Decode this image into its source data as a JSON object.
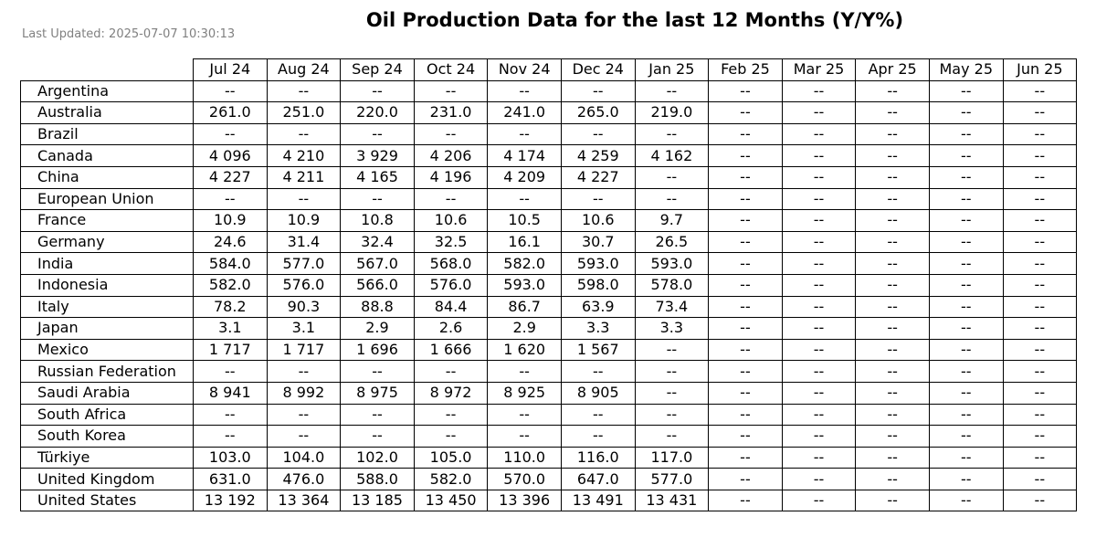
{
  "chart_data": {
    "type": "table",
    "title": "Oil Production Data for the last 12 Months (Y/Y%)",
    "subtitle": "Last Updated: 2025-07-07 10:30:13",
    "columns": [
      "Jul 24",
      "Aug 24",
      "Sep 24",
      "Oct 24",
      "Nov 24",
      "Dec 24",
      "Jan 25",
      "Feb 25",
      "Mar 25",
      "Apr 25",
      "May 25",
      "Jun 25"
    ],
    "rows": [
      {
        "country": "Argentina",
        "values": [
          "--",
          "--",
          "--",
          "--",
          "--",
          "--",
          "--",
          "--",
          "--",
          "--",
          "--",
          "--"
        ]
      },
      {
        "country": "Australia",
        "values": [
          "261.0",
          "251.0",
          "220.0",
          "231.0",
          "241.0",
          "265.0",
          "219.0",
          "--",
          "--",
          "--",
          "--",
          "--"
        ]
      },
      {
        "country": "Brazil",
        "values": [
          "--",
          "--",
          "--",
          "--",
          "--",
          "--",
          "--",
          "--",
          "--",
          "--",
          "--",
          "--"
        ]
      },
      {
        "country": "Canada",
        "values": [
          "4 096",
          "4 210",
          "3 929",
          "4 206",
          "4 174",
          "4 259",
          "4 162",
          "--",
          "--",
          "--",
          "--",
          "--"
        ]
      },
      {
        "country": "China",
        "values": [
          "4 227",
          "4 211",
          "4 165",
          "4 196",
          "4 209",
          "4 227",
          "--",
          "--",
          "--",
          "--",
          "--",
          "--"
        ]
      },
      {
        "country": "European Union",
        "values": [
          "--",
          "--",
          "--",
          "--",
          "--",
          "--",
          "--",
          "--",
          "--",
          "--",
          "--",
          "--"
        ]
      },
      {
        "country": "France",
        "values": [
          "10.9",
          "10.9",
          "10.8",
          "10.6",
          "10.5",
          "10.6",
          "9.7",
          "--",
          "--",
          "--",
          "--",
          "--"
        ]
      },
      {
        "country": "Germany",
        "values": [
          "24.6",
          "31.4",
          "32.4",
          "32.5",
          "16.1",
          "30.7",
          "26.5",
          "--",
          "--",
          "--",
          "--",
          "--"
        ]
      },
      {
        "country": "India",
        "values": [
          "584.0",
          "577.0",
          "567.0",
          "568.0",
          "582.0",
          "593.0",
          "593.0",
          "--",
          "--",
          "--",
          "--",
          "--"
        ]
      },
      {
        "country": "Indonesia",
        "values": [
          "582.0",
          "576.0",
          "566.0",
          "576.0",
          "593.0",
          "598.0",
          "578.0",
          "--",
          "--",
          "--",
          "--",
          "--"
        ]
      },
      {
        "country": "Italy",
        "values": [
          "78.2",
          "90.3",
          "88.8",
          "84.4",
          "86.7",
          "63.9",
          "73.4",
          "--",
          "--",
          "--",
          "--",
          "--"
        ]
      },
      {
        "country": "Japan",
        "values": [
          "3.1",
          "3.1",
          "2.9",
          "2.6",
          "2.9",
          "3.3",
          "3.3",
          "--",
          "--",
          "--",
          "--",
          "--"
        ]
      },
      {
        "country": "Mexico",
        "values": [
          "1 717",
          "1 717",
          "1 696",
          "1 666",
          "1 620",
          "1 567",
          "--",
          "--",
          "--",
          "--",
          "--",
          "--"
        ]
      },
      {
        "country": "Russian Federation",
        "values": [
          "--",
          "--",
          "--",
          "--",
          "--",
          "--",
          "--",
          "--",
          "--",
          "--",
          "--",
          "--"
        ]
      },
      {
        "country": "Saudi Arabia",
        "values": [
          "8 941",
          "8 992",
          "8 975",
          "8 972",
          "8 925",
          "8 905",
          "--",
          "--",
          "--",
          "--",
          "--",
          "--"
        ]
      },
      {
        "country": "South Africa",
        "values": [
          "--",
          "--",
          "--",
          "--",
          "--",
          "--",
          "--",
          "--",
          "--",
          "--",
          "--",
          "--"
        ]
      },
      {
        "country": "South Korea",
        "values": [
          "--",
          "--",
          "--",
          "--",
          "--",
          "--",
          "--",
          "--",
          "--",
          "--",
          "--",
          "--"
        ]
      },
      {
        "country": "Türkiye",
        "values": [
          "103.0",
          "104.0",
          "102.0",
          "105.0",
          "110.0",
          "116.0",
          "117.0",
          "--",
          "--",
          "--",
          "--",
          "--"
        ]
      },
      {
        "country": "United Kingdom",
        "values": [
          "631.0",
          "476.0",
          "588.0",
          "582.0",
          "570.0",
          "647.0",
          "577.0",
          "--",
          "--",
          "--",
          "--",
          "--"
        ]
      },
      {
        "country": "United States",
        "values": [
          "13 192",
          "13 364",
          "13 185",
          "13 450",
          "13 396",
          "13 491",
          "13 431",
          "--",
          "--",
          "--",
          "--",
          "--"
        ]
      }
    ]
  }
}
